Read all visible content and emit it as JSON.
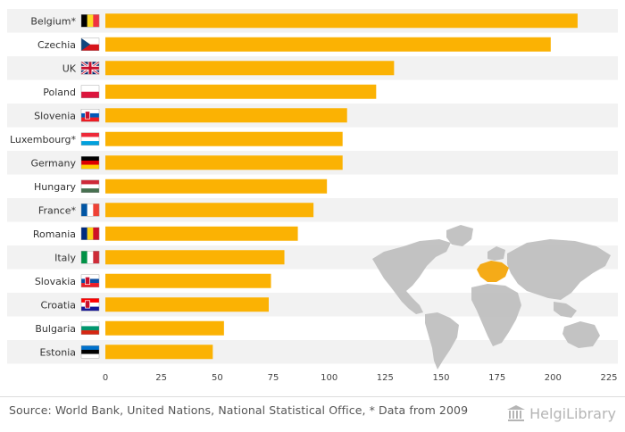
{
  "chart_data": {
    "type": "bar",
    "orientation": "horizontal",
    "categories": [
      "Belgium*",
      "Czechia",
      "UK",
      "Poland",
      "Slovenia",
      "Luxembourg*",
      "Germany",
      "Hungary",
      "France*",
      "Romania",
      "Italy",
      "Slovakia",
      "Croatia",
      "Bulgaria",
      "Estonia"
    ],
    "values": [
      211,
      199,
      129,
      121,
      108,
      106,
      106,
      99,
      93,
      86,
      80,
      74,
      73,
      53,
      48
    ],
    "xlim": [
      0,
      225
    ],
    "xticks": [
      "0",
      "25",
      "50",
      "75",
      "100",
      "125",
      "150",
      "175",
      "200",
      "225"
    ],
    "title": "",
    "xlabel": "",
    "ylabel": "",
    "bar_color": "#fbb203",
    "flags": [
      "belgium-flag-icon",
      "czechia-flag-icon",
      "uk-flag-icon",
      "poland-flag-icon",
      "slovenia-flag-icon",
      "luxembourg-flag-icon",
      "germany-flag-icon",
      "hungary-flag-icon",
      "france-flag-icon",
      "romania-flag-icon",
      "italy-flag-icon",
      "slovakia-flag-icon",
      "croatia-flag-icon",
      "bulgaria-flag-icon",
      "estonia-flag-icon"
    ]
  },
  "footer": {
    "source": "Source: World Bank, United Nations, National Statistical Office, * Data from 2009",
    "brand": "HelgiLibrary"
  }
}
